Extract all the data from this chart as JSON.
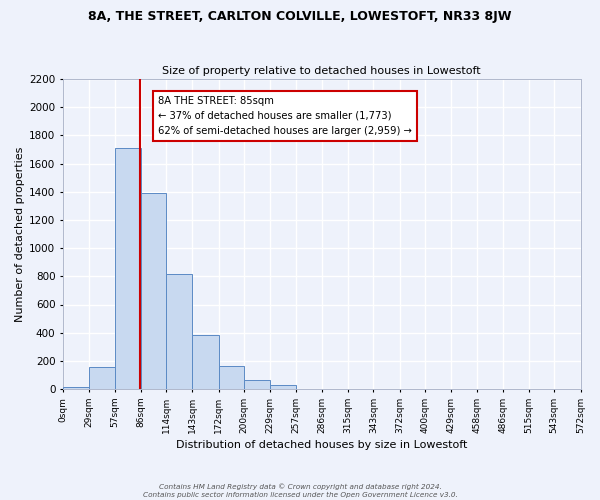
{
  "title": "8A, THE STREET, CARLTON COLVILLE, LOWESTOFT, NR33 8JW",
  "subtitle": "Size of property relative to detached houses in Lowestoft",
  "xlabel": "Distribution of detached houses by size in Lowestoft",
  "ylabel": "Number of detached properties",
  "bar_color": "#c8d9f0",
  "bar_edge_color": "#5b8ac5",
  "background_color": "#eef2fb",
  "grid_color": "#ffffff",
  "bin_edges": [
    0,
    29,
    57,
    86,
    114,
    143,
    172,
    200,
    229,
    257,
    286,
    315,
    343,
    372,
    400,
    429,
    458,
    486,
    515,
    543,
    572
  ],
  "bar_heights": [
    15,
    155,
    1710,
    1390,
    820,
    380,
    160,
    65,
    30,
    0,
    0,
    0,
    0,
    0,
    0,
    0,
    0,
    0,
    0,
    0
  ],
  "tick_labels": [
    "0sqm",
    "29sqm",
    "57sqm",
    "86sqm",
    "114sqm",
    "143sqm",
    "172sqm",
    "200sqm",
    "229sqm",
    "257sqm",
    "286sqm",
    "315sqm",
    "343sqm",
    "372sqm",
    "400sqm",
    "429sqm",
    "458sqm",
    "486sqm",
    "515sqm",
    "543sqm",
    "572sqm"
  ],
  "property_size": 85,
  "red_line_color": "#cc0000",
  "annotation_text": "8A THE STREET: 85sqm\n← 37% of detached houses are smaller (1,773)\n62% of semi-detached houses are larger (2,959) →",
  "annotation_box_color": "#ffffff",
  "annotation_box_edge_color": "#cc0000",
  "ylim": [
    0,
    2200
  ],
  "yticks": [
    0,
    200,
    400,
    600,
    800,
    1000,
    1200,
    1400,
    1600,
    1800,
    2000,
    2200
  ],
  "footnote1": "Contains HM Land Registry data © Crown copyright and database right 2024.",
  "footnote2": "Contains public sector information licensed under the Open Government Licence v3.0."
}
